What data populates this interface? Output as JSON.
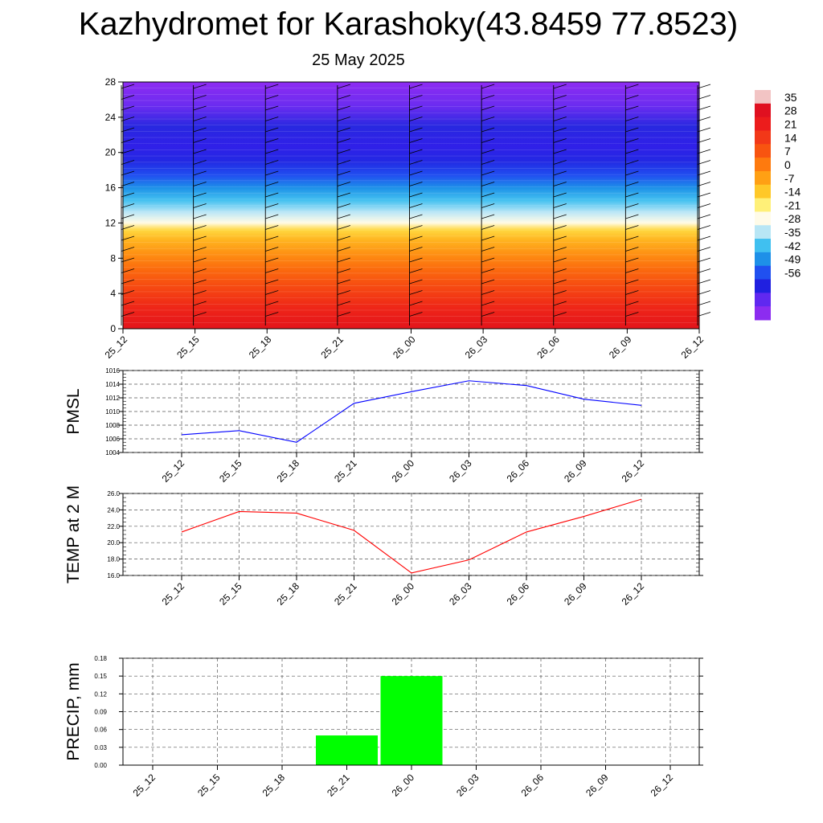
{
  "header": {
    "title": "Kazhydromet for Karashoky(43.8459 77.8523)",
    "date": "25 May 2025"
  },
  "colorbar": {
    "labels": [
      "35",
      "28",
      "21",
      "14",
      "7",
      "0",
      "-7",
      "-14",
      "-21",
      "-28",
      "-35",
      "-42",
      "-49",
      "-56"
    ],
    "colors": [
      "#f2c4c4",
      "#e01020",
      "#ec1c1c",
      "#f23818",
      "#f85410",
      "#fe7a0e",
      "#ffa014",
      "#ffc828",
      "#fff078",
      "#fffbe8",
      "#b8e6f5",
      "#40c0f0",
      "#1e90e8",
      "#2050f0",
      "#2020e0",
      "#6028f0",
      "#8c2cf0"
    ]
  },
  "chart_data": [
    {
      "type": "heatmap",
      "ylim": [
        0,
        28
      ],
      "yticks": [
        "0",
        "4",
        "8",
        "12",
        "16",
        "20",
        "24",
        "28"
      ],
      "xticks": [
        "25_12",
        "25_15",
        "25_18",
        "25_21",
        "26_00",
        "26_03",
        "26_06",
        "26_09",
        "26_12"
      ],
      "value_range": [
        -56,
        35
      ],
      "notes": "vertical cross-section with wind barbs"
    },
    {
      "type": "line",
      "ylabel": "PMSL",
      "ylim": [
        1004,
        1016
      ],
      "yticks": [
        "1004",
        "1006",
        "1008",
        "1010",
        "1012",
        "1014",
        "1016"
      ],
      "x": [
        "25_12",
        "25_15",
        "25_18",
        "25_21",
        "26_00",
        "26_03",
        "26_06",
        "26_09",
        "26_12"
      ],
      "series": [
        {
          "values": [
            1006.6,
            1007.2,
            1005.5,
            1011.2,
            1012.9,
            1014.5,
            1013.8,
            1011.8,
            1010.9
          ]
        }
      ],
      "color": "#0000ff",
      "grid": true
    },
    {
      "type": "line",
      "ylabel": "TEMP at 2 M",
      "ylim": [
        16,
        26
      ],
      "yticks": [
        "16.0",
        "18.0",
        "20.0",
        "22.0",
        "24.0",
        "26.0"
      ],
      "x": [
        "25_12",
        "25_15",
        "25_18",
        "25_21",
        "26_00",
        "26_03",
        "26_06",
        "26_09",
        "26_12"
      ],
      "series": [
        {
          "values": [
            21.3,
            23.8,
            23.6,
            21.5,
            16.3,
            17.9,
            21.3,
            23.2,
            25.3
          ]
        }
      ],
      "color": "#ff0000",
      "grid": true
    },
    {
      "type": "bar",
      "ylabel": "PRECIP, mm",
      "ylim": [
        0,
        0.18
      ],
      "yticks": [
        "0.00",
        "0.03",
        "0.06",
        "0.09",
        "0.12",
        "0.15",
        "0.18"
      ],
      "categories": [
        "25_12",
        "25_15",
        "25_18",
        "25_21",
        "26_00",
        "26_03",
        "26_06",
        "26_09",
        "26_12"
      ],
      "values": [
        0,
        0,
        0,
        0.05,
        0.15,
        0,
        0,
        0,
        0
      ],
      "color": "#00ff00",
      "grid": true
    }
  ]
}
